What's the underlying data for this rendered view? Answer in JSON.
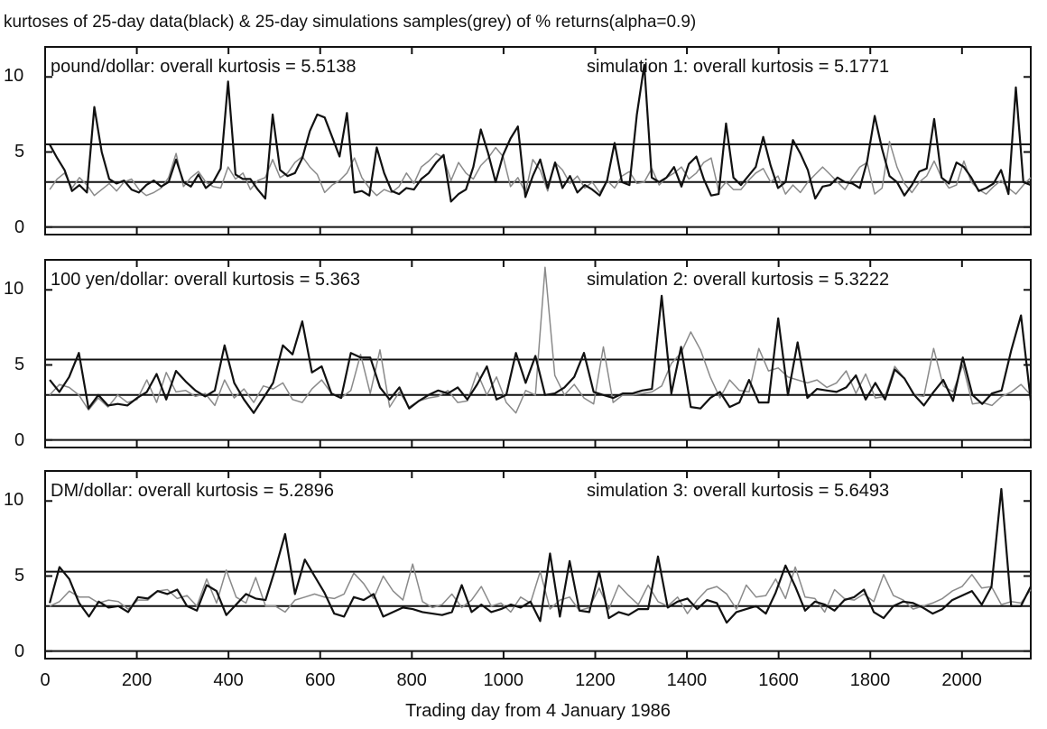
{
  "chart_data": {
    "type": "line",
    "title": "kurtoses of 25-day data(black) & 25-day simulations samples(grey) of % returns(alpha=0.9)",
    "xlabel": "Trading day from 4 January 1986",
    "xlim": [
      0,
      2150
    ],
    "x_ticks": [
      "0",
      "200",
      "400",
      "600",
      "800",
      "1000",
      "1200",
      "1400",
      "1600",
      "1800",
      "2000"
    ],
    "series_colors": {
      "data": "#111111",
      "simulation": "#8a8a8a"
    },
    "panels": [
      {
        "data_label": "pound/dollar: overall kurtosis = 5.5138",
        "sim_label": "simulation 1: overall kurtosis = 5.1771",
        "ylim": [
          -0.5,
          12
        ],
        "y_ticks": [
          "0",
          "5",
          "10"
        ],
        "reference_lines": [
          3,
          5.51
        ],
        "data_series": [
          5.5,
          4.6,
          3.8,
          2.4,
          2.8,
          2.3,
          8.0,
          5.0,
          3.2,
          2.9,
          3.1,
          2.5,
          2.3,
          2.8,
          3.1,
          2.7,
          3.0,
          4.5,
          3.0,
          2.7,
          3.5,
          2.6,
          3.0,
          3.9,
          9.7,
          3.5,
          3.2,
          3.2,
          2.5,
          1.9,
          7.5,
          3.8,
          3.4,
          3.6,
          4.6,
          6.4,
          7.5,
          7.3,
          6.0,
          4.7,
          7.6,
          2.3,
          2.4,
          2.1,
          5.3,
          3.6,
          2.4,
          2.2,
          2.6,
          2.5,
          3.2,
          3.6,
          4.3,
          4.8,
          1.7,
          2.2,
          2.5,
          4.0,
          6.5,
          4.9,
          3.0,
          4.8,
          5.9,
          6.7,
          2.0,
          3.4,
          4.5,
          2.6,
          4.3,
          2.6,
          3.4,
          2.3,
          2.8,
          2.5,
          2.1,
          3.1,
          5.6,
          3.0,
          2.8,
          7.5,
          10.8,
          3.3,
          3.0,
          3.3,
          4.0,
          2.7,
          4.2,
          4.7,
          3.2,
          2.1,
          2.2,
          6.9,
          3.3,
          2.8,
          3.4,
          4.0,
          6.0,
          4.1,
          2.6,
          3.0,
          5.8,
          4.9,
          3.8,
          1.9,
          2.7,
          2.8,
          3.3,
          3.0,
          2.9,
          2.6,
          4.4,
          7.4,
          5.2,
          3.4,
          3.0,
          2.1,
          2.8,
          3.7,
          3.9,
          7.2,
          3.3,
          2.9,
          4.3,
          4.0,
          3.3,
          2.4,
          2.6,
          2.9,
          3.8,
          2.2,
          9.3,
          3.0,
          2.8
        ],
        "sim_series": [
          2.5,
          3.2,
          3.6,
          2.6,
          3.3,
          2.8,
          2.1,
          2.5,
          2.9,
          2.4,
          3.0,
          3.2,
          2.5,
          2.1,
          2.3,
          2.6,
          3.3,
          4.9,
          2.7,
          3.3,
          3.7,
          3.0,
          2.7,
          2.6,
          4.0,
          3.2,
          3.6,
          2.5,
          3.1,
          3.3,
          4.5,
          3.3,
          3.6,
          4.3,
          4.7,
          4.0,
          3.5,
          2.3,
          2.8,
          3.1,
          3.6,
          4.6,
          3.3,
          2.6,
          2.1,
          2.5,
          2.3,
          2.7,
          3.6,
          2.9,
          4.0,
          4.4,
          4.9,
          4.6,
          3.1,
          4.3,
          3.6,
          3.2,
          4.1,
          4.6,
          5.3,
          4.7,
          2.7,
          3.3,
          2.3,
          4.5,
          3.8,
          2.4,
          4.3,
          3.8,
          2.9,
          3.4,
          2.6,
          3.0,
          2.3,
          3.1,
          2.6,
          3.4,
          3.7,
          2.9,
          3.0,
          3.9,
          2.8,
          3.3,
          3.6,
          4.0,
          3.2,
          3.6,
          4.3,
          4.6,
          2.4,
          3.0,
          2.5,
          2.5,
          3.1,
          3.6,
          3.9,
          3.0,
          3.4,
          2.2,
          2.8,
          2.3,
          3.0,
          3.5,
          4.0,
          3.5,
          3.0,
          2.5,
          3.3,
          4.0,
          4.3,
          2.2,
          2.6,
          5.7,
          4.0,
          2.9,
          2.3,
          3.0,
          3.4,
          4.4,
          3.3,
          2.6,
          2.8,
          4.4,
          3.0,
          2.5,
          2.2,
          2.7,
          3.1,
          2.6,
          2.2,
          2.8,
          3.3
        ]
      },
      {
        "data_label": "100 yen/dollar: overall kurtosis = 5.363",
        "sim_label": "simulation 2: overall kurtosis = 5.3222",
        "ylim": [
          -0.5,
          12
        ],
        "y_ticks": [
          "0",
          "5",
          "10"
        ],
        "reference_lines": [
          3,
          5.36
        ],
        "data_series": [
          4.0,
          3.2,
          4.2,
          5.8,
          2.1,
          3.0,
          2.3,
          2.4,
          2.3,
          2.8,
          3.2,
          4.4,
          2.7,
          4.6,
          3.9,
          3.3,
          2.9,
          3.3,
          6.3,
          3.8,
          2.7,
          1.8,
          2.8,
          3.8,
          6.3,
          5.7,
          7.9,
          4.5,
          4.9,
          3.1,
          2.8,
          5.8,
          5.5,
          5.5,
          3.5,
          2.7,
          3.5,
          2.1,
          2.6,
          3.0,
          3.3,
          3.1,
          3.5,
          2.7,
          3.7,
          4.9,
          2.7,
          3.0,
          5.8,
          3.8,
          5.6,
          3.0,
          3.1,
          3.5,
          4.2,
          5.8,
          3.2,
          3.0,
          2.8,
          3.1,
          3.1,
          3.3,
          3.4,
          9.6,
          3.1,
          6.2,
          2.2,
          2.1,
          2.8,
          3.2,
          2.2,
          2.5,
          4.0,
          2.5,
          2.5,
          8.1,
          3.0,
          6.5,
          2.8,
          3.4,
          3.3,
          3.2,
          3.5,
          4.3,
          2.7,
          3.8,
          2.7,
          4.7,
          4.1,
          3.0,
          2.3,
          3.2,
          4.0,
          2.6,
          5.5,
          3.0,
          2.4,
          3.1,
          3.3,
          6.0,
          8.3,
          2.6
        ],
        "sim_series": [
          3.0,
          3.7,
          3.5,
          3.0,
          2.0,
          2.8,
          2.2,
          3.0,
          2.5,
          2.7,
          4.0,
          2.5,
          4.5,
          3.2,
          3.3,
          2.9,
          3.1,
          2.3,
          4.0,
          2.8,
          3.4,
          2.5,
          3.6,
          3.4,
          3.8,
          2.7,
          2.5,
          3.4,
          4.0,
          3.1,
          2.8,
          3.3,
          5.7,
          3.1,
          6.0,
          2.2,
          3.2,
          2.2,
          2.6,
          2.8,
          2.9,
          3.3,
          2.5,
          2.6,
          4.5,
          3.0,
          4.2,
          2.5,
          1.8,
          3.3,
          3.0,
          11.5,
          4.3,
          3.0,
          3.7,
          2.8,
          2.4,
          6.2,
          2.5,
          3.0,
          3.0,
          3.1,
          3.2,
          3.6,
          5.1,
          5.8,
          7.2,
          6.0,
          4.2,
          2.8,
          4.0,
          3.3,
          3.2,
          6.1,
          4.6,
          4.8,
          4.2,
          4.0,
          3.8,
          4.0,
          3.5,
          3.8,
          4.6,
          3.1,
          4.4,
          2.8,
          2.9,
          4.9,
          4.1,
          3.0,
          2.9,
          6.1,
          3.6,
          3.2,
          5.0,
          2.4,
          2.5,
          2.3,
          2.9,
          3.2,
          3.7,
          3.0
        ]
      },
      {
        "data_label": "DM/dollar: overall kurtosis = 5.2896",
        "sim_label": "simulation 3: overall kurtosis = 5.6493",
        "ylim": [
          -0.5,
          12
        ],
        "y_ticks": [
          "0",
          "5",
          "10"
        ],
        "reference_lines": [
          3,
          5.29
        ],
        "data_series": [
          3.2,
          5.6,
          4.8,
          3.2,
          2.3,
          3.3,
          2.9,
          3.0,
          2.6,
          3.6,
          3.5,
          4.0,
          3.8,
          4.1,
          3.0,
          2.7,
          4.4,
          4.0,
          2.4,
          3.1,
          3.8,
          3.5,
          3.4,
          5.5,
          7.8,
          3.8,
          6.1,
          5.0,
          3.9,
          2.5,
          2.3,
          3.6,
          3.4,
          3.8,
          2.3,
          2.6,
          2.9,
          2.8,
          2.6,
          2.5,
          2.4,
          2.6,
          4.4,
          2.6,
          3.1,
          2.6,
          2.8,
          3.1,
          2.9,
          3.3,
          2.0,
          6.5,
          2.3,
          6.0,
          2.7,
          2.6,
          5.3,
          2.2,
          2.6,
          2.4,
          2.8,
          2.8,
          6.3,
          2.9,
          3.3,
          3.5,
          2.8,
          3.4,
          3.2,
          1.9,
          2.6,
          2.8,
          3.0,
          2.5,
          3.9,
          5.7,
          4.3,
          2.7,
          3.3,
          3.1,
          2.7,
          3.4,
          3.6,
          4.1,
          2.6,
          2.2,
          3.0,
          3.3,
          3.2,
          2.9,
          2.5,
          2.8,
          3.4,
          3.7,
          4.0,
          3.1,
          4.3,
          10.8,
          3.0,
          3.0,
          4.3
        ],
        "sim_series": [
          3.0,
          3.3,
          4.0,
          3.6,
          3.6,
          3.2,
          3.4,
          3.3,
          2.8,
          3.4,
          3.4,
          4.0,
          4.1,
          3.5,
          3.7,
          3.0,
          4.8,
          3.2,
          5.4,
          3.6,
          3.2,
          4.9,
          3.0,
          3.0,
          2.6,
          3.4,
          3.6,
          3.8,
          3.6,
          3.5,
          3.8,
          5.2,
          4.5,
          3.5,
          5.0,
          4.0,
          3.4,
          5.8,
          3.3,
          2.9,
          3.1,
          3.8,
          2.9,
          3.4,
          4.3,
          3.0,
          3.2,
          2.6,
          3.6,
          3.2,
          5.3,
          2.8,
          3.4,
          3.6,
          2.7,
          2.9,
          4.2,
          2.8,
          4.4,
          3.7,
          3.1,
          4.4,
          3.3,
          3.0,
          3.6,
          2.5,
          3.4,
          4.1,
          4.3,
          3.8,
          2.8,
          4.4,
          3.6,
          3.7,
          4.8,
          3.5,
          5.6,
          3.6,
          3.5,
          2.6,
          4.1,
          3.5,
          3.4,
          3.8,
          3.3,
          5.1,
          3.7,
          3.4,
          2.8,
          3.0,
          3.2,
          3.5,
          4.0,
          4.3,
          5.1,
          4.2,
          4.3,
          3.1,
          3.3,
          3.2,
          4.1
        ]
      }
    ]
  }
}
